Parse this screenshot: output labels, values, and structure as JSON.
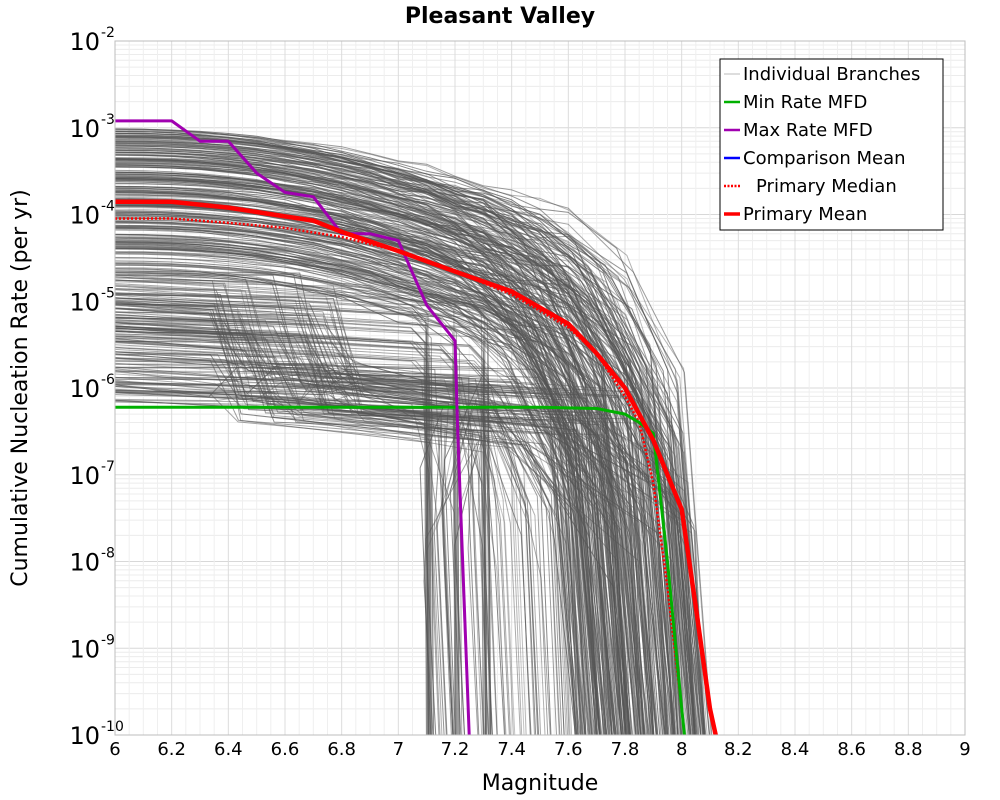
{
  "chart_data": {
    "type": "line",
    "title": "Pleasant Valley",
    "xlabel": "Magnitude",
    "ylabel": "Cumulative Nucleation Rate (per yr)",
    "xlim": [
      6,
      9
    ],
    "ylim": [
      1e-10,
      0.01
    ],
    "y_scale": "log",
    "grid": true,
    "legend_position": "top-right",
    "x_ticks": [
      "6",
      "6.2",
      "6.4",
      "6.6",
      "6.8",
      "7",
      "7.2",
      "7.4",
      "7.6",
      "7.8",
      "8",
      "8.2",
      "8.4",
      "8.6",
      "8.8",
      "9"
    ],
    "y_ticks": [
      {
        "base": "10",
        "exp": "-2",
        "value": 0.01
      },
      {
        "base": "10",
        "exp": "-3",
        "value": 0.001
      },
      {
        "base": "10",
        "exp": "-4",
        "value": 0.0001
      },
      {
        "base": "10",
        "exp": "-5",
        "value": 1e-05
      },
      {
        "base": "10",
        "exp": "-6",
        "value": 1e-06
      },
      {
        "base": "10",
        "exp": "-7",
        "value": 1e-07
      },
      {
        "base": "10",
        "exp": "-8",
        "value": 1e-08
      },
      {
        "base": "10",
        "exp": "-9",
        "value": 1e-09
      },
      {
        "base": "10",
        "exp": "-10",
        "value": 1e-10
      }
    ],
    "series": [
      {
        "name": "Individual Branches",
        "color": "#555555",
        "style": "thin",
        "x": [],
        "y": []
      },
      {
        "name": "Min Rate MFD",
        "color": "#00b000",
        "style": "solid",
        "x": [
          6.0,
          6.5,
          7.0,
          7.5,
          7.7,
          7.8,
          7.85,
          7.9,
          7.95,
          8.0,
          8.01
        ],
        "y": [
          6e-07,
          6e-07,
          6e-07,
          6e-07,
          5.8e-07,
          5e-07,
          4e-07,
          3e-07,
          1e-08,
          2e-10,
          1e-10
        ]
      },
      {
        "name": "Max Rate MFD",
        "color": "#a000b0",
        "style": "solid",
        "x": [
          6.0,
          6.2,
          6.3,
          6.4,
          6.5,
          6.6,
          6.7,
          6.8,
          6.9,
          7.0,
          7.1,
          7.2,
          7.21,
          7.25
        ],
        "y": [
          0.0012,
          0.0012,
          0.0007,
          0.0007,
          0.0003,
          0.00018,
          0.00016,
          6e-05,
          6e-05,
          5e-05,
          9e-06,
          3.5e-06,
          3e-07,
          1e-10
        ]
      },
      {
        "name": "Comparison Mean",
        "color": "#0000ff",
        "style": "solid",
        "x": [
          8.0,
          8.05,
          8.1,
          8.12
        ],
        "y": [
          4e-08,
          3e-09,
          2e-10,
          1e-10
        ]
      },
      {
        "name": "Primary Median",
        "color": "#ff0000",
        "style": "dotted",
        "x": [
          6.0,
          6.2,
          6.4,
          6.6,
          6.8,
          7.0,
          7.2,
          7.4,
          7.6,
          7.7,
          7.8,
          7.85,
          7.9,
          7.95,
          8.0,
          8.01
        ],
        "y": [
          9e-05,
          9e-05,
          8e-05,
          7e-05,
          5.5e-05,
          3.8e-05,
          2.2e-05,
          1.2e-05,
          5e-06,
          2.5e-06,
          8e-07,
          4e-07,
          8e-08,
          5e-09,
          2e-10,
          1e-10
        ]
      },
      {
        "name": "Primary Mean",
        "color": "#ff0000",
        "style": "thick",
        "x": [
          6.0,
          6.2,
          6.4,
          6.6,
          6.7,
          6.8,
          7.0,
          7.2,
          7.4,
          7.6,
          7.7,
          7.8,
          7.9,
          8.0,
          8.05,
          8.1,
          8.12
        ],
        "y": [
          0.00014,
          0.00014,
          0.00012,
          9.5e-05,
          8.5e-05,
          6.3e-05,
          3.8e-05,
          2.2e-05,
          1.3e-05,
          5.5e-06,
          2.5e-06,
          1e-06,
          2.5e-07,
          4e-08,
          3e-09,
          2e-10,
          1e-10
        ]
      }
    ]
  }
}
